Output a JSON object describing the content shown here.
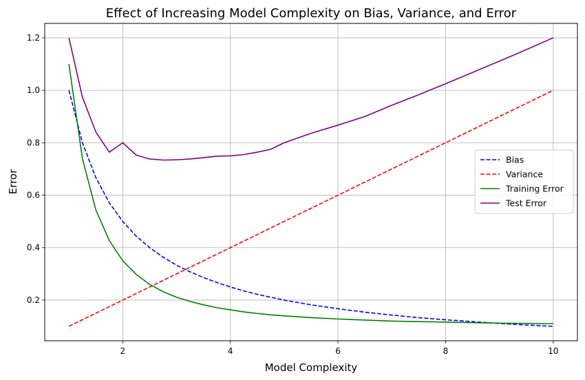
{
  "chart_data": {
    "type": "line",
    "title": "Effect of Increasing Model Complexity on Bias, Variance, and Error",
    "xlabel": "Model Complexity",
    "ylabel": "Error",
    "xlim": [
      0.55,
      10.45
    ],
    "ylim": [
      0.045,
      1.255
    ],
    "xticks": [
      2,
      4,
      6,
      8,
      10
    ],
    "xtick_labels": [
      "2",
      "4",
      "6",
      "8",
      "10"
    ],
    "yticks": [
      0.2,
      0.4,
      0.6,
      0.8,
      1.0,
      1.2
    ],
    "ytick_labels": [
      "0.2",
      "0.4",
      "0.6",
      "0.8",
      "1.0",
      "1.2"
    ],
    "grid": true,
    "legend_position": "center-right",
    "x": [
      1.0,
      1.25,
      1.5,
      1.75,
      2.0,
      2.25,
      2.5,
      2.75,
      3.0,
      3.25,
      3.5,
      3.75,
      4.0,
      4.25,
      4.5,
      4.75,
      5.0,
      5.5,
      6.0,
      6.5,
      7.0,
      7.5,
      8.0,
      8.5,
      9.0,
      9.5,
      10.0
    ],
    "series": [
      {
        "name": "Bias",
        "color": "#0000ff",
        "style": "dashed",
        "values": [
          1.0,
          0.8,
          0.667,
          0.571,
          0.5,
          0.444,
          0.4,
          0.364,
          0.333,
          0.308,
          0.286,
          0.267,
          0.25,
          0.235,
          0.222,
          0.211,
          0.2,
          0.182,
          0.167,
          0.154,
          0.143,
          0.133,
          0.125,
          0.118,
          0.111,
          0.105,
          0.1
        ]
      },
      {
        "name": "Variance",
        "color": "#ff0000",
        "style": "dashed",
        "values": [
          0.1,
          0.125,
          0.15,
          0.175,
          0.2,
          0.225,
          0.25,
          0.275,
          0.3,
          0.325,
          0.35,
          0.375,
          0.4,
          0.425,
          0.45,
          0.475,
          0.5,
          0.55,
          0.6,
          0.65,
          0.7,
          0.75,
          0.8,
          0.85,
          0.9,
          0.95,
          1.0
        ]
      },
      {
        "name": "Training Error",
        "color": "#008000",
        "style": "solid",
        "values": [
          1.1,
          0.74,
          0.544,
          0.427,
          0.35,
          0.298,
          0.26,
          0.232,
          0.211,
          0.195,
          0.182,
          0.171,
          0.163,
          0.155,
          0.149,
          0.144,
          0.14,
          0.133,
          0.128,
          0.124,
          0.12,
          0.118,
          0.116,
          0.114,
          0.112,
          0.111,
          0.11
        ]
      },
      {
        "name": "Test Error",
        "color": "#800080",
        "style": "solid",
        "values": [
          1.2,
          0.974,
          0.841,
          0.764,
          0.8,
          0.753,
          0.738,
          0.734,
          0.735,
          0.738,
          0.743,
          0.749,
          0.75,
          0.755,
          0.764,
          0.775,
          0.8,
          0.836,
          0.867,
          0.9,
          0.943,
          0.983,
          1.025,
          1.068,
          1.111,
          1.155,
          1.2
        ]
      }
    ]
  }
}
